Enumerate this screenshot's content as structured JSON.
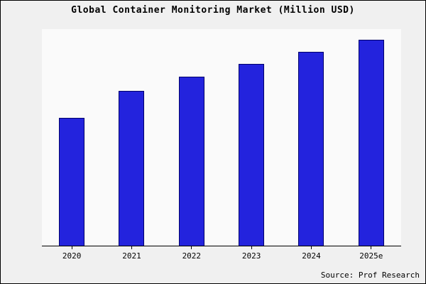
{
  "chart_data": {
    "type": "bar",
    "title": "Global Container Monitoring Market (Million USD)",
    "categories": [
      "2020",
      "2021",
      "2022",
      "2023",
      "2024",
      "2025e"
    ],
    "values": [
      62,
      75,
      82,
      88,
      94,
      100
    ],
    "xlabel": "",
    "ylabel": "",
    "ylim": [
      0,
      105
    ],
    "grid": false,
    "legend": false,
    "bar_fill_color": "#2323dd",
    "bar_border_color": "#00006b"
  },
  "source": "Source: Prof Research"
}
